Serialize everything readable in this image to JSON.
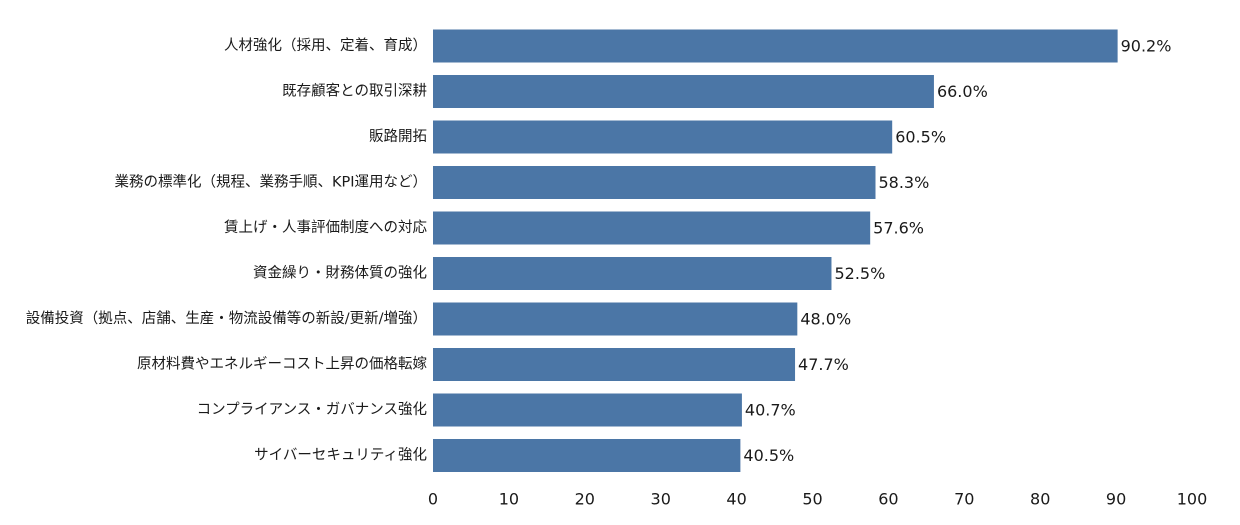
{
  "chart_data": {
    "type": "bar",
    "orientation": "horizontal",
    "categories": [
      "人材強化（採用、定着、育成）",
      "既存顧客との取引深耕",
      "販路開拓",
      "業務の標準化（規程、業務手順、KPI運用など）",
      "賃上げ・人事評価制度への対応",
      "資金繰り・財務体質の強化",
      "設備投資（拠点、店舗、生産・物流設備等の新設/更新/増強）",
      "原材料費やエネルギーコスト上昇の価格転嫁",
      "コンプライアンス・ガバナンス強化",
      "サイバーセキュリティ強化"
    ],
    "values": [
      90.2,
      66.0,
      60.5,
      58.3,
      57.6,
      52.5,
      48.0,
      47.7,
      40.7,
      40.5
    ],
    "value_labels": [
      "90.2%",
      "66.0%",
      "60.5%",
      "58.3%",
      "57.6%",
      "52.5%",
      "48.0%",
      "47.7%",
      "40.7%",
      "40.5%"
    ],
    "xlim": [
      0,
      100
    ],
    "xticks": [
      "0",
      "10",
      "20",
      "30",
      "40",
      "50",
      "60",
      "70",
      "80",
      "90",
      "100"
    ],
    "title": "",
    "xlabel": "",
    "ylabel": "",
    "grid": false,
    "bar_color": "#4b76a6"
  }
}
